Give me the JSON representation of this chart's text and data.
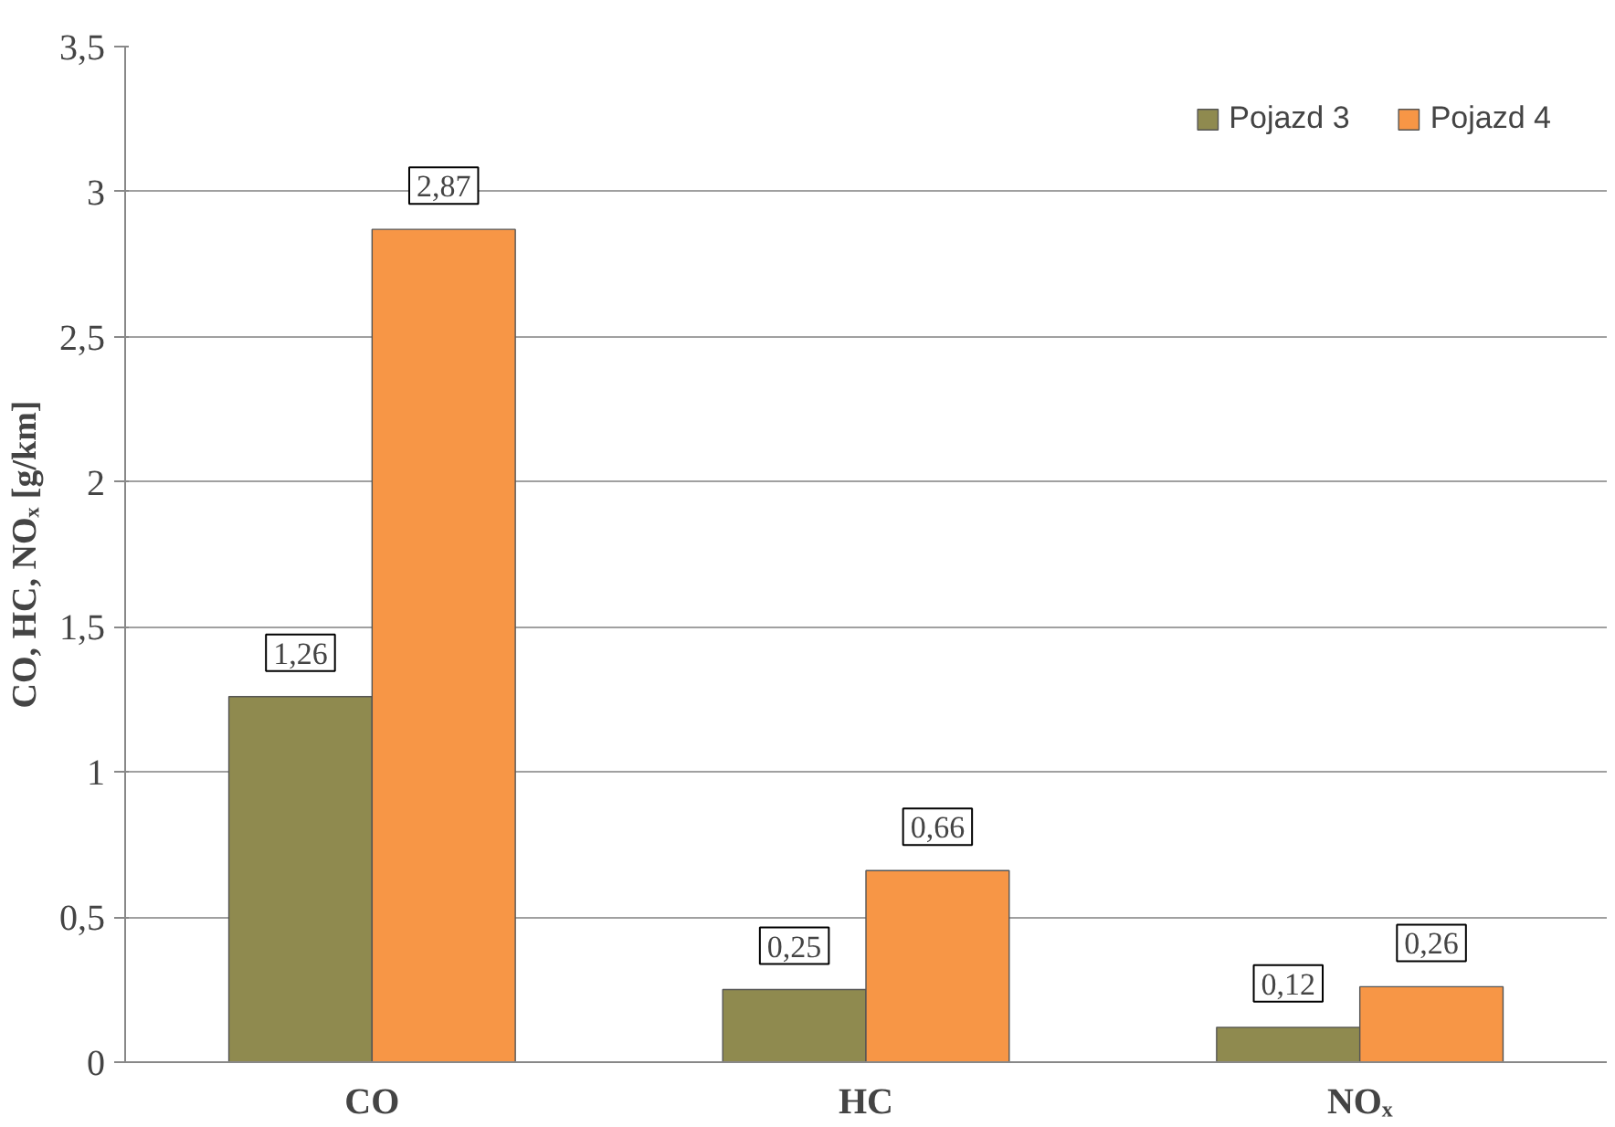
{
  "chart_data": {
    "type": "bar",
    "ylabel": "CO, HC, NOₓ [g/km]",
    "categories": [
      "CO",
      "HC",
      "NOₓ"
    ],
    "series": [
      {
        "name": "Pojazd 3",
        "color": "#8f8a4f",
        "values": [
          1.26,
          0.25,
          0.12
        ],
        "value_labels": [
          "1,26",
          "0,25",
          "0,12"
        ]
      },
      {
        "name": "Pojazd 4",
        "color": "#f79646",
        "values": [
          2.87,
          0.66,
          0.26
        ],
        "value_labels": [
          "2,87",
          "0,66",
          "0,26"
        ]
      }
    ],
    "ylim": [
      0,
      3.5
    ],
    "yticks": [
      0,
      {
        "value": 0.5,
        "label": "0,5"
      },
      1,
      {
        "value": 1.5,
        "label": "1,5"
      },
      2,
      {
        "value": 2.5,
        "label": "2,5"
      },
      3,
      {
        "value": 3.5,
        "label": "3,5"
      }
    ],
    "grid": "y",
    "legend": "top right"
  }
}
